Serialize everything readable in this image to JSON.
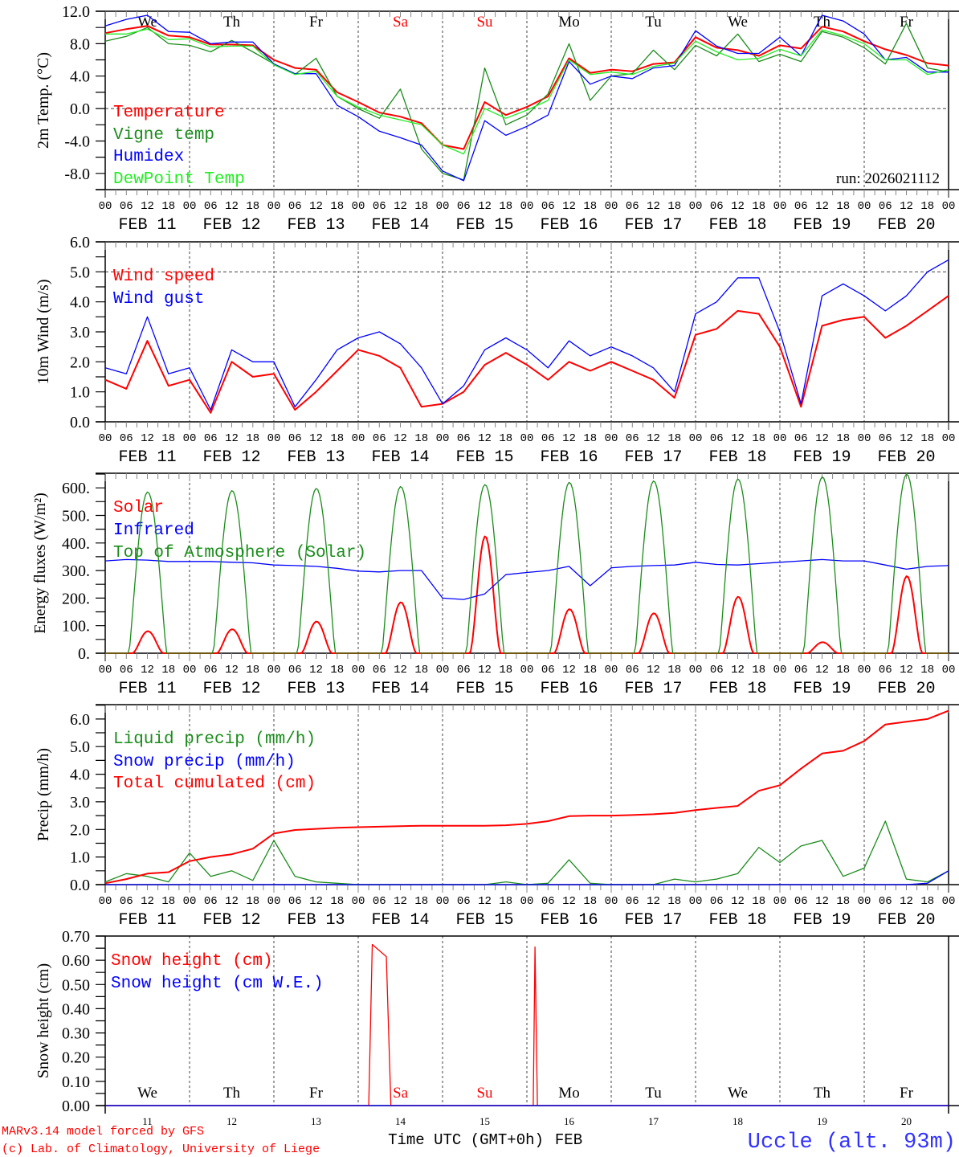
{
  "colors": {
    "red": "#ff0000",
    "dark_green": "#1a8c1a",
    "blue": "#0000ff",
    "light_green": "#22ee22",
    "axis": "#000000"
  },
  "x_axis": {
    "hour_labels": [
      "00",
      "06",
      "12",
      "18"
    ],
    "date_labels": [
      "FEB 11",
      "FEB 12",
      "FEB 13",
      "FEB 14",
      "FEB 15",
      "FEB 16",
      "FEB 17",
      "FEB 18",
      "FEB 19",
      "FEB 20"
    ],
    "day_names": [
      "We",
      "Th",
      "Fr",
      "Sa",
      "Su",
      "Mo",
      "Tu",
      "We",
      "Th",
      "Fr"
    ],
    "weekend_color_days": [
      3,
      4
    ],
    "day_numbers": [
      "11",
      "12",
      "13",
      "14",
      "15",
      "16",
      "17",
      "18",
      "19",
      "20"
    ],
    "time_label": "Time UTC (GMT+0h)",
    "month_label": "FEB",
    "step_hours": 6
  },
  "footer": {
    "model": "MARv3.14 model forced by GFS",
    "credit": "(c) Lab. of Climatology, University of Liege",
    "station": "Uccle (alt. 93m)"
  },
  "chart_data": [
    {
      "type": "line",
      "ylabel": "2m Temp. (°C)",
      "ylim": [
        -10,
        12
      ],
      "ytick_labels": [
        "12.0",
        "8.0",
        "4.0",
        "0.0",
        "-4.0",
        "-8.0"
      ],
      "annotation": "run: 2026021112",
      "series": [
        {
          "name": "Temperature",
          "color": "red",
          "values": [
            9.3,
            9.8,
            10.2,
            9.0,
            8.8,
            7.9,
            7.9,
            7.8,
            6.0,
            5.0,
            4.8,
            2.0,
            0.8,
            -0.5,
            -1.0,
            -1.8,
            -4.5,
            -5.0,
            0.8,
            -0.8,
            0.2,
            1.5,
            6.2,
            4.4,
            4.8,
            4.6,
            5.5,
            5.7,
            8.8,
            7.5,
            7.2,
            6.5,
            7.8,
            7.4,
            10.1,
            9.5,
            8.3,
            7.3,
            6.6,
            5.6,
            5.3
          ]
        },
        {
          "name": "Vigne temp",
          "color": "dark_green",
          "values": [
            8.3,
            8.9,
            10.0,
            8.0,
            7.8,
            7.0,
            8.4,
            7.0,
            5.5,
            4.2,
            6.2,
            1.5,
            0.0,
            -1.2,
            2.4,
            -5.0,
            -8.0,
            -8.8,
            5.0,
            -2.0,
            -0.8,
            1.8,
            8.0,
            1.0,
            4.0,
            4.3,
            7.2,
            4.8,
            7.8,
            6.5,
            9.2,
            5.8,
            6.7,
            5.8,
            9.5,
            8.8,
            7.5,
            5.5,
            10.5,
            5.0,
            4.5
          ]
        },
        {
          "name": "Humidex",
          "color": "blue",
          "values": [
            10.2,
            11.0,
            11.5,
            9.5,
            9.4,
            8.0,
            8.2,
            8.2,
            5.5,
            4.3,
            4.3,
            0.4,
            -1.0,
            -2.8,
            -3.6,
            -4.5,
            -7.7,
            -8.9,
            -1.5,
            -3.3,
            -2.2,
            -0.8,
            5.8,
            3.0,
            4.0,
            3.7,
            5.0,
            5.3,
            9.6,
            7.7,
            6.8,
            6.8,
            8.8,
            6.5,
            11.5,
            10.8,
            9.2,
            6.0,
            6.3,
            4.5,
            4.5
          ]
        },
        {
          "name": "DewPoint Temp",
          "color": "light_green",
          "values": [
            9.2,
            9.2,
            9.8,
            8.5,
            8.6,
            7.6,
            7.7,
            7.7,
            5.4,
            4.2,
            4.6,
            1.5,
            0.2,
            -0.8,
            -1.4,
            -2.0,
            -4.5,
            -5.6,
            0.0,
            -1.2,
            -0.2,
            1.0,
            6.0,
            4.2,
            4.5,
            4.2,
            5.2,
            5.6,
            8.3,
            7.0,
            6.0,
            6.2,
            7.3,
            6.5,
            9.7,
            9.0,
            8.0,
            6.0,
            6.0,
            4.2,
            4.8
          ]
        }
      ]
    },
    {
      "type": "line",
      "ylabel": "10m Wind (m/s)",
      "ylim": [
        0,
        6
      ],
      "ytick_labels": [
        "6.0",
        "5.0",
        "4.0",
        "3.0",
        "2.0",
        "1.0",
        "0.0"
      ],
      "series": [
        {
          "name": "Wind speed",
          "color": "red",
          "values": [
            1.4,
            1.1,
            2.7,
            1.2,
            1.4,
            0.3,
            2.0,
            1.5,
            1.6,
            0.4,
            1.0,
            1.7,
            2.4,
            2.2,
            1.8,
            0.5,
            0.6,
            1.0,
            1.9,
            2.3,
            1.9,
            1.4,
            2.0,
            1.7,
            2.0,
            1.7,
            1.4,
            0.8,
            2.9,
            3.1,
            3.7,
            3.6,
            2.5,
            0.5,
            3.2,
            3.4,
            3.5,
            2.8,
            3.2,
            3.7,
            4.2
          ]
        },
        {
          "name": "Wind gust",
          "color": "blue",
          "values": [
            1.8,
            1.6,
            3.5,
            1.6,
            1.8,
            0.4,
            2.4,
            2.0,
            2.0,
            0.5,
            1.4,
            2.4,
            2.8,
            3.0,
            2.6,
            1.8,
            0.6,
            1.2,
            2.4,
            2.8,
            2.4,
            1.8,
            2.7,
            2.2,
            2.5,
            2.2,
            1.8,
            1.0,
            3.6,
            4.0,
            4.8,
            4.8,
            3.0,
            0.6,
            4.2,
            4.6,
            4.2,
            3.7,
            4.2,
            5.0,
            5.4
          ]
        }
      ]
    },
    {
      "type": "line",
      "ylabel": "Energy fluxes (W/m²)",
      "ylim": [
        0,
        653
      ],
      "ytick_labels": [
        "600.",
        "500.",
        "400.",
        "300.",
        "200.",
        "100.",
        "0."
      ],
      "series": [
        {
          "name": "Solar",
          "color": "red",
          "daily_peaks": [
            80,
            87,
            115,
            185,
            425,
            160,
            145,
            205,
            40,
            280
          ]
        },
        {
          "name": "Infrared",
          "color": "blue",
          "values": [
            335,
            340,
            338,
            333,
            333,
            333,
            330,
            328,
            320,
            318,
            315,
            308,
            298,
            295,
            300,
            300,
            200,
            195,
            215,
            285,
            293,
            300,
            315,
            245,
            310,
            315,
            318,
            320,
            330,
            322,
            320,
            325,
            330,
            335,
            340,
            335,
            335,
            320,
            305,
            315,
            318
          ]
        },
        {
          "name": "Top of Atmosphere (Solar)",
          "color": "dark_green",
          "daily_peaks": [
            585,
            590,
            598,
            605,
            612,
            620,
            625,
            632,
            640,
            650
          ]
        }
      ]
    },
    {
      "type": "line",
      "ylabel": "Precip (mm/h)",
      "ylim": [
        0,
        6.52
      ],
      "ytick_labels": [
        "6.0",
        "5.0",
        "4.0",
        "3.0",
        "2.0",
        "1.0",
        "0.0"
      ],
      "series": [
        {
          "name": "Liquid precip (mm/h)",
          "color": "dark_green",
          "values": [
            0.1,
            0.4,
            0.3,
            0.1,
            1.15,
            0.3,
            0.5,
            0.15,
            1.6,
            0.3,
            0.1,
            0.05,
            0,
            0,
            0,
            0,
            0,
            0,
            0,
            0.1,
            0,
            0.05,
            0.9,
            0.05,
            0,
            0,
            0,
            0.2,
            0.1,
            0.2,
            0.4,
            1.35,
            0.8,
            1.4,
            1.6,
            0.3,
            0.6,
            2.3,
            0.2,
            0.1,
            0.5
          ]
        },
        {
          "name": "Snow precip (mm/h)",
          "color": "blue",
          "values": [
            0,
            0,
            0,
            0,
            0,
            0,
            0,
            0,
            0,
            0,
            0,
            0,
            0,
            0,
            0,
            0,
            0,
            0,
            0,
            0,
            0,
            0,
            0,
            0,
            0,
            0,
            0,
            0,
            0,
            0,
            0,
            0,
            0,
            0,
            0,
            0,
            0,
            0,
            0,
            0.05,
            0.5
          ]
        },
        {
          "name": "Total cumulated (cm)",
          "color": "red",
          "values": [
            0.05,
            0.2,
            0.4,
            0.45,
            0.85,
            1.0,
            1.1,
            1.3,
            1.85,
            1.98,
            2.02,
            2.06,
            2.08,
            2.1,
            2.12,
            2.13,
            2.13,
            2.13,
            2.13,
            2.15,
            2.2,
            2.3,
            2.48,
            2.5,
            2.5,
            2.52,
            2.55,
            2.6,
            2.7,
            2.78,
            2.85,
            3.4,
            3.6,
            4.2,
            4.75,
            4.85,
            5.2,
            5.8,
            5.9,
            6.0,
            6.3
          ]
        }
      ]
    },
    {
      "type": "line",
      "ylabel": "Snow height (cm)",
      "ylim": [
        0,
        0.7
      ],
      "ytick_labels": [
        "0.70",
        "0.60",
        "0.50",
        "0.40",
        "0.30",
        "0.20",
        "0.10",
        "0.00"
      ],
      "series": [
        {
          "name": "Snow height (cm)",
          "color": "red",
          "points_hours_value": [
            [
              0,
              0
            ],
            [
              75,
              0
            ],
            [
              76,
              0.665
            ],
            [
              80,
              0.615
            ],
            [
              81.3,
              0
            ],
            [
              121.8,
              0
            ],
            [
              122.3,
              0.655
            ],
            [
              123,
              0
            ],
            [
              240,
              0
            ]
          ]
        },
        {
          "name": "Snow height (cm W.E.)",
          "color": "blue",
          "points_hours_value": [
            [
              0,
              0
            ],
            [
              240,
              0
            ]
          ]
        }
      ]
    }
  ]
}
